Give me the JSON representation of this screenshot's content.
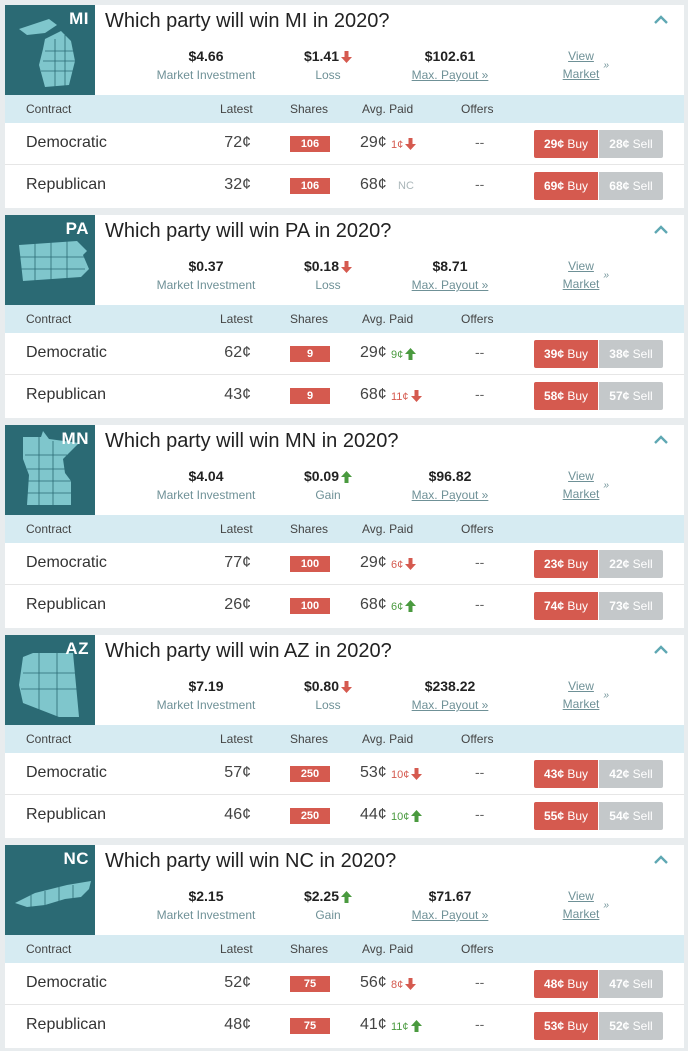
{
  "columns": {
    "contract": "Contract",
    "latest": "Latest",
    "shares": "Shares",
    "avg_paid": "Avg. Paid",
    "offers": "Offers"
  },
  "buy_label": "Buy",
  "sell_label": "Sell",
  "view_market_line1": "View",
  "view_market_line2": "Market",
  "colors": {
    "brand_teal": "#2b6a74",
    "header_bg": "#d6ebf2",
    "buy_red": "#d55a4f",
    "sell_grey": "#c4c8ca",
    "gain_green": "#4a9a3f"
  },
  "markets": [
    {
      "abbr": "MI",
      "title": "Which party will win MI in 2020?",
      "investment": "$4.66",
      "investment_label": "Market Investment",
      "pnl": "$1.41",
      "pnl_dir": "down",
      "pnl_label": "Loss",
      "payout": "$102.61",
      "payout_label": "Max. Payout »",
      "rows": [
        {
          "name": "Democratic",
          "latest": "72¢",
          "shares": "106",
          "avg": "29¢",
          "chg": "1¢",
          "chg_dir": "down",
          "offers": "--",
          "buy": "29¢",
          "sell": "28¢"
        },
        {
          "name": "Republican",
          "latest": "32¢",
          "shares": "106",
          "avg": "68¢",
          "chg": "NC",
          "chg_dir": "nc",
          "offers": "--",
          "buy": "69¢",
          "sell": "68¢"
        }
      ]
    },
    {
      "abbr": "PA",
      "title": "Which party will win PA in 2020?",
      "investment": "$0.37",
      "investment_label": "Market Investment",
      "pnl": "$0.18",
      "pnl_dir": "down",
      "pnl_label": "Loss",
      "payout": "$8.71",
      "payout_label": "Max. Payout »",
      "rows": [
        {
          "name": "Democratic",
          "latest": "62¢",
          "shares": "9",
          "avg": "29¢",
          "chg": "9¢",
          "chg_dir": "up",
          "offers": "--",
          "buy": "39¢",
          "sell": "38¢"
        },
        {
          "name": "Republican",
          "latest": "43¢",
          "shares": "9",
          "avg": "68¢",
          "chg": "11¢",
          "chg_dir": "down",
          "offers": "--",
          "buy": "58¢",
          "sell": "57¢"
        }
      ]
    },
    {
      "abbr": "MN",
      "title": "Which party will win MN in 2020?",
      "investment": "$4.04",
      "investment_label": "Market Investment",
      "pnl": "$0.09",
      "pnl_dir": "up",
      "pnl_label": "Gain",
      "payout": "$96.82",
      "payout_label": "Max. Payout »",
      "rows": [
        {
          "name": "Democratic",
          "latest": "77¢",
          "shares": "100",
          "avg": "29¢",
          "chg": "6¢",
          "chg_dir": "down",
          "offers": "--",
          "buy": "23¢",
          "sell": "22¢"
        },
        {
          "name": "Republican",
          "latest": "26¢",
          "shares": "100",
          "avg": "68¢",
          "chg": "6¢",
          "chg_dir": "up",
          "offers": "--",
          "buy": "74¢",
          "sell": "73¢"
        }
      ]
    },
    {
      "abbr": "AZ",
      "title": "Which party will win AZ in 2020?",
      "investment": "$7.19",
      "investment_label": "Market Investment",
      "pnl": "$0.80",
      "pnl_dir": "down",
      "pnl_label": "Loss",
      "payout": "$238.22",
      "payout_label": "Max. Payout »",
      "rows": [
        {
          "name": "Democratic",
          "latest": "57¢",
          "shares": "250",
          "avg": "53¢",
          "chg": "10¢",
          "chg_dir": "down",
          "offers": "--",
          "buy": "43¢",
          "sell": "42¢"
        },
        {
          "name": "Republican",
          "latest": "46¢",
          "shares": "250",
          "avg": "44¢",
          "chg": "10¢",
          "chg_dir": "up",
          "offers": "--",
          "buy": "55¢",
          "sell": "54¢"
        }
      ]
    },
    {
      "abbr": "NC",
      "title": "Which party will win NC in 2020?",
      "investment": "$2.15",
      "investment_label": "Market Investment",
      "pnl": "$2.25",
      "pnl_dir": "up",
      "pnl_label": "Gain",
      "payout": "$71.67",
      "payout_label": "Max. Payout »",
      "rows": [
        {
          "name": "Democratic",
          "latest": "52¢",
          "shares": "75",
          "avg": "56¢",
          "chg": "8¢",
          "chg_dir": "down",
          "offers": "--",
          "buy": "48¢",
          "sell": "47¢"
        },
        {
          "name": "Republican",
          "latest": "48¢",
          "shares": "75",
          "avg": "41¢",
          "chg": "11¢",
          "chg_dir": "up",
          "offers": "--",
          "buy": "53¢",
          "sell": "52¢"
        }
      ]
    }
  ]
}
